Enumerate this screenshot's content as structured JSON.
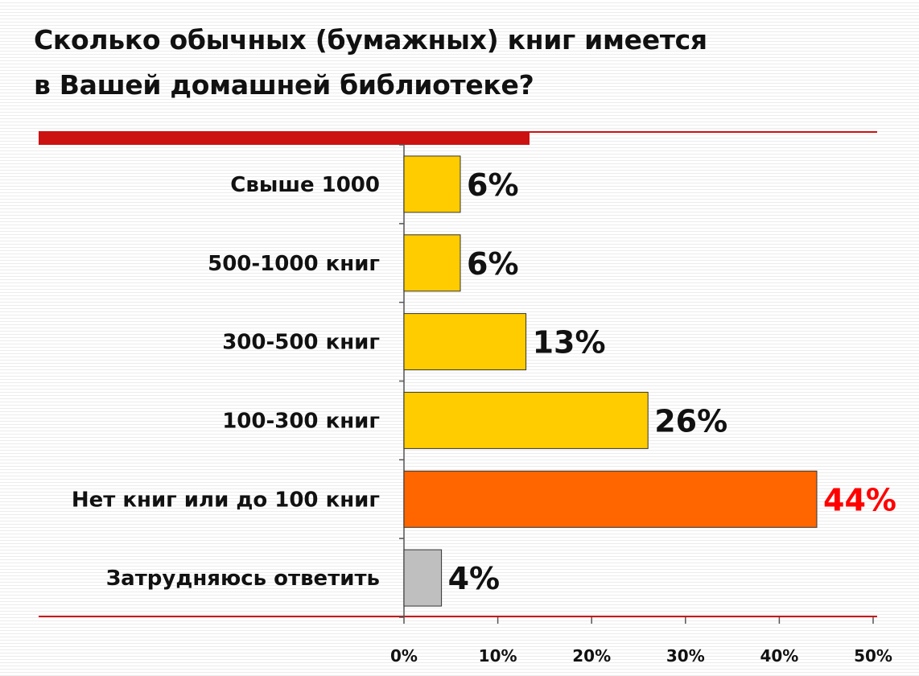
{
  "title_lines": [
    "Сколько обычных (бумажных) книг имеется",
    "в Вашей домашней библиотеке?"
  ],
  "colors": {
    "accent_red": "#cc1111",
    "bar_default": "#ffcc00",
    "bar_highlight": "#ff6600",
    "bar_neutral": "#bfbfbf",
    "label_highlight": "#ff0000",
    "label_default": "#111111"
  },
  "chart_data": {
    "type": "bar",
    "orientation": "horizontal",
    "title": "Сколько обычных (бумажных) книг имеется в Вашей домашней библиотеке?",
    "categories": [
      "Свыше 1000",
      "500-1000 книг",
      "300-500 книг",
      "100-300 книг",
      "Нет книг или до 100 книг",
      "Затрудняюсь ответить"
    ],
    "values": [
      6,
      6,
      13,
      26,
      44,
      4
    ],
    "value_labels": [
      "6%",
      "6%",
      "13%",
      "26%",
      "44%",
      "4%"
    ],
    "bar_colors": [
      "#ffcc00",
      "#ffcc00",
      "#ffcc00",
      "#ffcc00",
      "#ff6600",
      "#bfbfbf"
    ],
    "label_colors": [
      "#111111",
      "#111111",
      "#111111",
      "#111111",
      "#ff0000",
      "#111111"
    ],
    "xlim": [
      0,
      50
    ],
    "xticks": [
      0,
      10,
      20,
      30,
      40,
      50
    ],
    "xtick_labels": [
      "0%",
      "10%",
      "20%",
      "30%",
      "40%",
      "50%"
    ],
    "xlabel": "",
    "ylabel": "",
    "grid": false
  }
}
